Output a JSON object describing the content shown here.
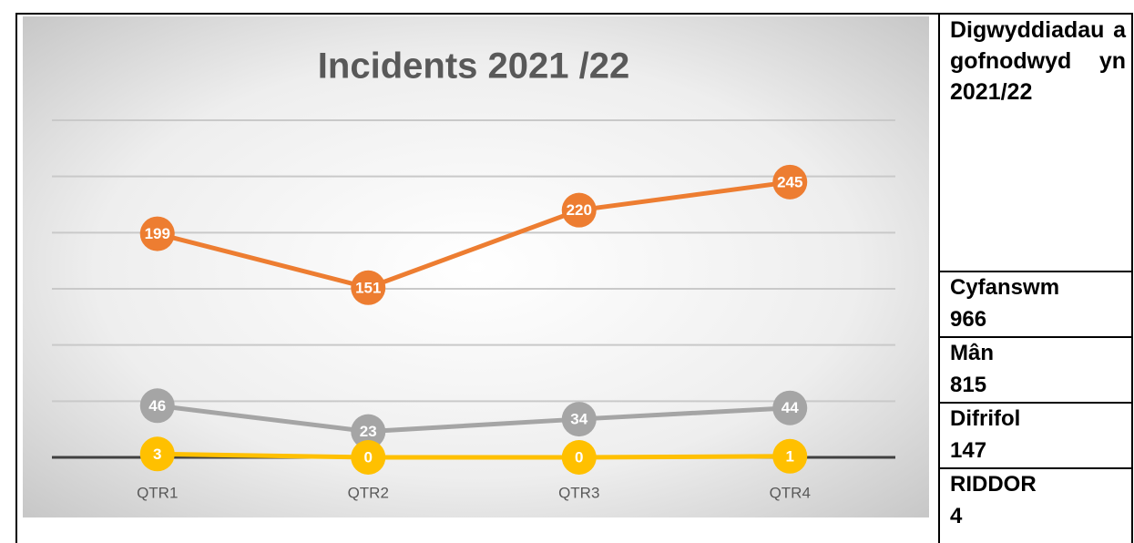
{
  "chart_data": {
    "type": "line",
    "title": "Incidents 2021 /22",
    "categories": [
      "QTR1",
      "QTR2",
      "QTR3",
      "QTR4"
    ],
    "series": [
      {
        "color": "#a5a5a5",
        "values": [
          46,
          23,
          34,
          44
        ]
      },
      {
        "color": "#ed7d31",
        "values": [
          199,
          151,
          220,
          245
        ]
      },
      {
        "color": "#ffc000",
        "values": [
          3,
          0,
          0,
          1
        ]
      }
    ],
    "ylim": [
      0,
      300
    ],
    "yticks": [
      0,
      50,
      100,
      150,
      200,
      250,
      300
    ],
    "grid": true
  },
  "table": {
    "heading": "Digwyddiadau a gofnodwyd yn 2021/22",
    "rows": [
      {
        "label": "Cyfanswm",
        "value": 966
      },
      {
        "label": "Mân",
        "value": 815
      },
      {
        "label": "Difrifol",
        "value": 147
      },
      {
        "label": "RIDDOR",
        "value": 4
      }
    ]
  }
}
